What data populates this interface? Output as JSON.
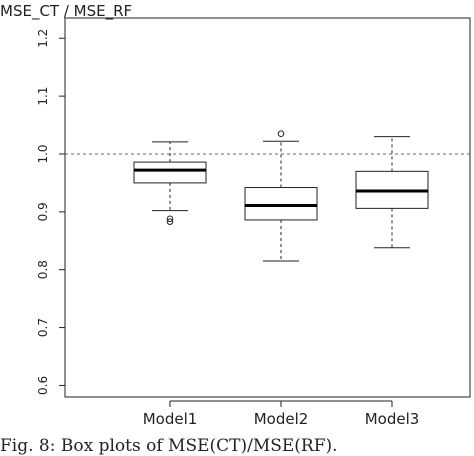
{
  "chart_data": {
    "type": "boxplot",
    "ylabel": "MSE_CT / MSE_RF",
    "categories": [
      "Model1",
      "Model2",
      "Model3"
    ],
    "boxes": [
      {
        "name": "Model1",
        "min": 0.902,
        "q1": 0.95,
        "median": 0.972,
        "q3": 0.986,
        "max": 1.021,
        "outliers": [
          0.888,
          0.883
        ]
      },
      {
        "name": "Model2",
        "min": 0.815,
        "q1": 0.886,
        "median": 0.911,
        "q3": 0.942,
        "max": 1.022,
        "outliers": [
          1.035
        ]
      },
      {
        "name": "Model3",
        "min": 0.838,
        "q1": 0.906,
        "median": 0.936,
        "q3": 0.97,
        "max": 1.03,
        "outliers": []
      }
    ],
    "ylim": [
      0.58,
      1.235
    ],
    "yticks": [
      "0.6",
      "0.7",
      "0.8",
      "0.9",
      "1.0",
      "1.1",
      "1.2"
    ],
    "reference_line": 1.0,
    "grid": false
  },
  "caption": "Fig. 8: Box plots of MSE(CT)/MSE(RF)."
}
